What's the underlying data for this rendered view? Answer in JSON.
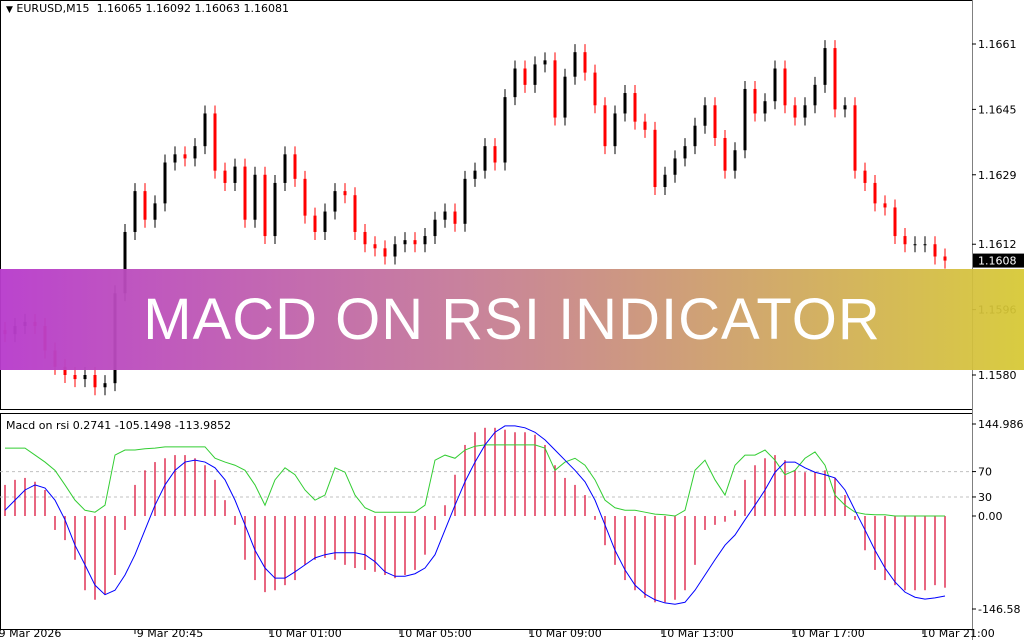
{
  "header": {
    "symbol": "EURUSD,M15",
    "ohlc": "1.16065 1.16092 1.16063 1.16081"
  },
  "indicator": {
    "title": "Macd on rsi 0.2741 -105.1498 -113.9852",
    "levels": [
      "144.986",
      "70",
      "30",
      "0.00",
      "-146.58"
    ]
  },
  "banner": {
    "text": "MACD ON RSI INDICATOR"
  },
  "colors": {
    "bull": "#000000",
    "bear": "#ff0000",
    "histogram": "#dc143c",
    "signal": "#0000ff",
    "rsi": "#32cd32",
    "current_price_bg": "#000000"
  },
  "chart_data": [
    {
      "type": "candlestick",
      "price_ticks": [
        "1.1661",
        "1.1645",
        "1.1629",
        "1.1612",
        "1.1596",
        "1.1580"
      ],
      "current_price": "1.1608",
      "ylim": [
        1.1577,
        1.1661
      ],
      "time_labels": [
        "9 Mar 2026",
        "9 Mar 20:45",
        "10 Mar 01:00",
        "10 Mar 05:00",
        "10 Mar 09:00",
        "10 Mar 13:00",
        "10 Mar 17:00",
        "10 Mar 21:00"
      ],
      "close": [
        1.159,
        1.1592,
        1.1593,
        1.1592,
        1.1586,
        1.1582,
        1.158,
        1.1579,
        1.158,
        1.1577,
        1.1578,
        1.16,
        1.1615,
        1.1625,
        1.1618,
        1.1622,
        1.1632,
        1.1634,
        1.1633,
        1.1636,
        1.1644,
        1.163,
        1.1627,
        1.1631,
        1.1618,
        1.1629,
        1.1614,
        1.1627,
        1.1634,
        1.1628,
        1.1619,
        1.1615,
        1.162,
        1.1625,
        1.1624,
        1.1615,
        1.1612,
        1.1611,
        1.1609,
        1.1612,
        1.1613,
        1.1612,
        1.1614,
        1.1618,
        1.162,
        1.1617,
        1.1628,
        1.163,
        1.1636,
        1.1632,
        1.1648,
        1.1655,
        1.1651,
        1.1656,
        1.1657,
        1.1643,
        1.1653,
        1.1659,
        1.1654,
        1.1646,
        1.1636,
        1.1644,
        1.1649,
        1.1642,
        1.164,
        1.1626,
        1.1629,
        1.1633,
        1.1636,
        1.1641,
        1.1646,
        1.1638,
        1.163,
        1.1635,
        1.165,
        1.1644,
        1.1647,
        1.1655,
        1.1646,
        1.1643,
        1.1646,
        1.1651,
        1.166,
        1.1645,
        1.1646,
        1.163,
        1.1627,
        1.1622,
        1.1621,
        1.1614,
        1.1612,
        1.1612,
        1.1612,
        1.1609,
        1.1608
      ]
    },
    {
      "type": "indicator",
      "ylim": [
        -146.58,
        144.986
      ],
      "levels": [
        70,
        30,
        0
      ],
      "histogram": [
        49,
        57,
        60,
        54,
        41,
        -22,
        -38,
        -69,
        -117,
        -132,
        -124,
        -93,
        -22,
        49,
        72,
        85,
        91,
        96,
        96,
        91,
        80,
        57,
        25,
        -14,
        -69,
        -101,
        -120,
        -117,
        -109,
        -101,
        -77,
        -69,
        -66,
        -69,
        -77,
        -82,
        -85,
        -88,
        -93,
        -98,
        -93,
        -85,
        -61,
        -22,
        17,
        65,
        112,
        132,
        139,
        139,
        136,
        132,
        132,
        128,
        112,
        80,
        60,
        49,
        33,
        -6,
        -46,
        -77,
        -101,
        -117,
        -129,
        -136,
        -136,
        -132,
        -117,
        -77,
        -22,
        -14,
        -9,
        9,
        57,
        80,
        91,
        96,
        88,
        72,
        69,
        69,
        72,
        60,
        33,
        -6,
        -54,
        -85,
        -101,
        -109,
        -117,
        -117,
        -117,
        -109,
        -113
      ],
      "signal": [
        9,
        25,
        41,
        49,
        44,
        25,
        -6,
        -46,
        -77,
        -109,
        -124,
        -117,
        -93,
        -61,
        -22,
        17,
        49,
        72,
        85,
        88,
        85,
        76,
        57,
        25,
        -14,
        -54,
        -82,
        -98,
        -98,
        -88,
        -77,
        -66,
        -61,
        -58,
        -58,
        -58,
        -61,
        -72,
        -88,
        -95,
        -95,
        -91,
        -82,
        -61,
        -22,
        17,
        54,
        85,
        112,
        132,
        142,
        142,
        139,
        132,
        120,
        104,
        88,
        72,
        54,
        25,
        -14,
        -54,
        -85,
        -109,
        -123,
        -132,
        -137,
        -139,
        -136,
        -117,
        -93,
        -69,
        -46,
        -30,
        -6,
        17,
        41,
        69,
        85,
        85,
        76,
        69,
        65,
        60,
        41,
        9,
        -22,
        -54,
        -82,
        -104,
        -120,
        -128,
        -131,
        -129,
        -126
      ],
      "rsi": [
        107,
        107,
        107,
        96,
        85,
        72,
        49,
        25,
        9,
        6,
        17,
        96,
        104,
        104,
        106,
        107,
        109,
        109,
        109,
        109,
        109,
        91,
        85,
        80,
        72,
        49,
        17,
        57,
        76,
        65,
        41,
        25,
        33,
        76,
        69,
        33,
        13,
        6,
        6,
        6,
        6,
        6,
        17,
        88,
        96,
        91,
        104,
        110,
        112,
        112,
        112,
        112,
        112,
        112,
        107,
        72,
        85,
        91,
        80,
        57,
        25,
        13,
        9,
        9,
        6,
        3,
        2,
        0,
        9,
        72,
        88,
        57,
        33,
        80,
        96,
        96,
        104,
        88,
        65,
        72,
        91,
        101,
        80,
        33,
        17,
        6,
        3,
        2,
        2,
        0,
        0,
        0,
        0,
        0,
        0
      ]
    }
  ]
}
